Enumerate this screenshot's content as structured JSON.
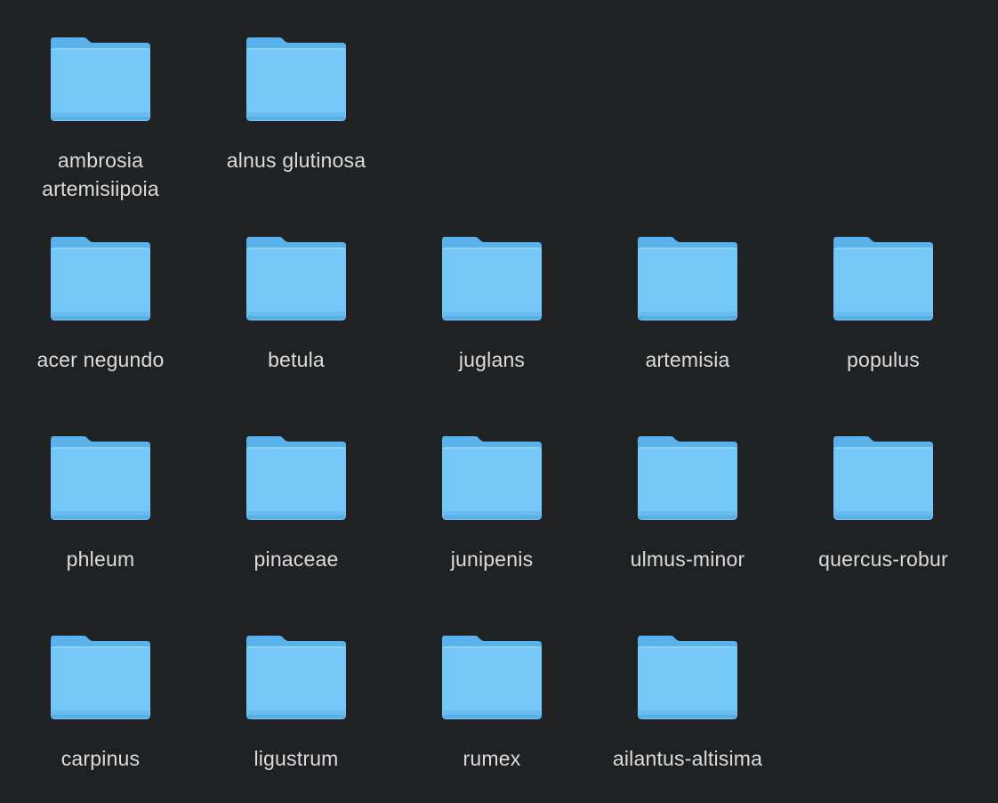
{
  "colors": {
    "background": "#1f2123",
    "folder_body": "#75c7f7",
    "folder_back": "#5ab2ec",
    "folder_edge": "#4f9fd9",
    "label_text": "#dcdcdc"
  },
  "folders": [
    {
      "label": "ambrosia artemisiipoia",
      "icon": "folder-icon"
    },
    {
      "label": "alnus glutinosa",
      "icon": "folder-icon"
    },
    {
      "label": "acer negundo",
      "icon": "folder-icon"
    },
    {
      "label": "betula",
      "icon": "folder-icon"
    },
    {
      "label": "juglans",
      "icon": "folder-icon"
    },
    {
      "label": "artemisia",
      "icon": "folder-icon"
    },
    {
      "label": "populus",
      "icon": "folder-icon"
    },
    {
      "label": "phleum",
      "icon": "folder-icon"
    },
    {
      "label": "pinaceae",
      "icon": "folder-icon"
    },
    {
      "label": "junipenis",
      "icon": "folder-icon"
    },
    {
      "label": "ulmus-minor",
      "icon": "folder-icon"
    },
    {
      "label": "quercus-robur",
      "icon": "folder-icon"
    },
    {
      "label": "carpinus",
      "icon": "folder-icon"
    },
    {
      "label": "ligustrum",
      "icon": "folder-icon"
    },
    {
      "label": "rumex",
      "icon": "folder-icon"
    },
    {
      "label": "ailantus-altisima",
      "icon": "folder-icon"
    }
  ]
}
